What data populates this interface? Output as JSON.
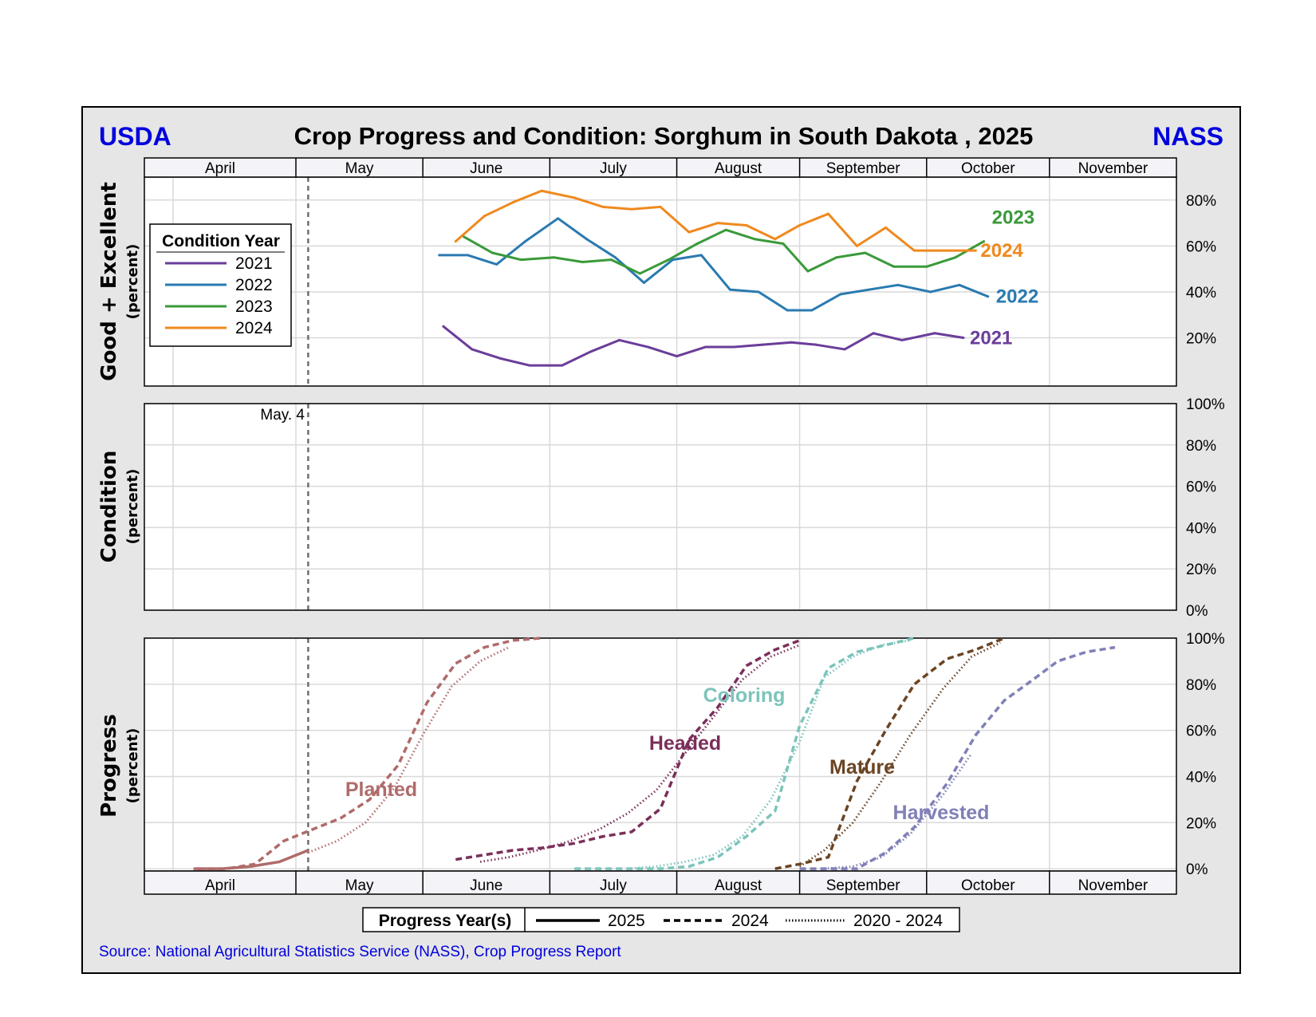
{
  "header": {
    "left_brand": "USDA",
    "right_brand": "NASS",
    "title": "Crop Progress and Condition: Sorghum in South Dakota , 2025"
  },
  "colors": {
    "brand": "#0000dd",
    "frame_bg": "#e6e6e6",
    "grid": "#d9d9d9",
    "reference_line": "#707070"
  },
  "months": [
    "April",
    "May",
    "June",
    "July",
    "August",
    "September",
    "October",
    "November"
  ],
  "reference": {
    "date": "05-04",
    "label": "May.  4"
  },
  "source": "Source: National Agricultural Statistics Service (NASS), Crop Progress Report",
  "chart_data": [
    {
      "type": "line",
      "id": "good_excellent",
      "ylabel": "Good + Excellent",
      "ylabel_sub": "(percent)",
      "x_range": [
        "03-25",
        "11-30"
      ],
      "ylim": [
        -1,
        90
      ],
      "yticks": [
        20,
        40,
        60,
        80
      ],
      "ytick_labels": [
        "20%",
        "40%",
        "60%",
        "80%"
      ],
      "grid": true,
      "legend": {
        "title": "Condition Year",
        "placement": "left"
      },
      "series": [
        {
          "name": "2021",
          "color": "#6a3d9a",
          "x": [
            "06-06",
            "06-13",
            "06-20",
            "06-27",
            "07-04",
            "07-11",
            "07-18",
            "07-25",
            "08-01",
            "08-08",
            "08-15",
            "08-22",
            "08-29",
            "09-05",
            "09-12",
            "09-19",
            "09-26",
            "10-03",
            "10-10"
          ],
          "y": [
            25,
            15,
            11,
            8,
            8,
            14,
            19,
            16,
            12,
            16,
            16,
            17,
            18,
            17,
            15,
            22,
            19,
            22,
            20
          ]
        },
        {
          "name": "2022",
          "color": "#2a7ab0",
          "x": [
            "06-05",
            "06-12",
            "06-19",
            "06-26",
            "07-03",
            "07-10",
            "07-17",
            "07-24",
            "07-31",
            "08-07",
            "08-14",
            "08-21",
            "08-28",
            "09-04",
            "09-11",
            "09-18",
            "09-25",
            "10-02",
            "10-09",
            "10-16"
          ],
          "y": [
            56,
            56,
            52,
            62,
            72,
            63,
            55,
            44,
            54,
            56,
            41,
            40,
            32,
            32,
            39,
            41,
            43,
            40,
            43,
            38
          ]
        },
        {
          "name": "2023",
          "color": "#3a9a3a",
          "x": [
            "06-11",
            "06-18",
            "06-25",
            "07-02",
            "07-09",
            "07-16",
            "07-23",
            "07-30",
            "08-06",
            "08-13",
            "08-20",
            "08-27",
            "09-03",
            "09-10",
            "09-17",
            "09-24",
            "10-01",
            "10-08",
            "10-15"
          ],
          "y": [
            64,
            57,
            54,
            55,
            53,
            54,
            48,
            54,
            61,
            67,
            63,
            61,
            49,
            55,
            57,
            51,
            51,
            55,
            62
          ]
        },
        {
          "name": "2024",
          "color": "#f0891e",
          "x": [
            "06-09",
            "06-16",
            "06-23",
            "06-30",
            "07-07",
            "07-14",
            "07-21",
            "07-28",
            "08-04",
            "08-11",
            "08-18",
            "08-25",
            "09-01",
            "09-08",
            "09-15",
            "09-22",
            "09-29",
            "10-06",
            "10-13"
          ],
          "y": [
            62,
            73,
            79,
            84,
            81,
            77,
            76,
            77,
            66,
            70,
            69,
            63,
            69,
            74,
            60,
            68,
            58,
            58,
            58
          ]
        }
      ]
    },
    {
      "type": "line",
      "id": "condition",
      "ylabel": "Condition",
      "ylabel_sub": "(percent)",
      "x_range": [
        "03-25",
        "11-30"
      ],
      "ylim": [
        0,
        100
      ],
      "yticks": [
        0,
        20,
        40,
        60,
        80,
        100
      ],
      "ytick_labels": [
        "0%",
        "20%",
        "40%",
        "60%",
        "80%",
        "100%"
      ],
      "grid": true,
      "series": []
    },
    {
      "type": "line",
      "id": "progress",
      "ylabel": "Progress",
      "ylabel_sub": "(percent)",
      "x_range": [
        "03-25",
        "11-30"
      ],
      "ylim": [
        -1,
        100
      ],
      "yticks": [
        0,
        20,
        40,
        60,
        80,
        100
      ],
      "ytick_labels": [
        "0%",
        "20%",
        "40%",
        "60%",
        "80%",
        "100%"
      ],
      "grid": true,
      "legend": {
        "title": "Progress Year(s)",
        "placement": "bottom",
        "entries": [
          {
            "label": "2025",
            "style": "solid"
          },
          {
            "label": "2024",
            "style": "dashed"
          },
          {
            "label": "2020 - 2024",
            "style": "dotted"
          }
        ]
      },
      "stages": [
        {
          "name": "Planted",
          "color": "#b06b6b",
          "series": [
            {
              "year": "2025",
              "style": "solid",
              "x": [
                "04-06",
                "04-13",
                "04-20",
                "04-27",
                "05-04"
              ],
              "y": [
                0,
                0,
                1,
                3,
                8
              ]
            },
            {
              "year": "2024",
              "style": "dashed",
              "x": [
                "04-07",
                "04-14",
                "04-21",
                "04-28",
                "05-05",
                "05-12",
                "05-19",
                "05-26",
                "06-02",
                "06-09",
                "06-16",
                "06-23",
                "06-30"
              ],
              "y": [
                0,
                0,
                2,
                12,
                17,
                22,
                30,
                45,
                72,
                89,
                96,
                99,
                100
              ]
            },
            {
              "year": "2020 - 2024",
              "style": "dotted",
              "x": [
                "05-04",
                "05-11",
                "05-18",
                "05-25",
                "06-01",
                "06-08",
                "06-15",
                "06-22"
              ],
              "y": [
                7,
                12,
                20,
                35,
                58,
                79,
                90,
                96
              ]
            }
          ]
        },
        {
          "name": "Headed",
          "color": "#7a2f5a",
          "series": [
            {
              "year": "2024",
              "style": "dashed",
              "x": [
                "06-09",
                "06-16",
                "06-23",
                "06-30",
                "07-07",
                "07-14",
                "07-21",
                "07-28",
                "08-04",
                "08-11",
                "08-18",
                "08-25",
                "09-01"
              ],
              "y": [
                4,
                6,
                8,
                9,
                11,
                14,
                16,
                26,
                56,
                70,
                88,
                95,
                99
              ]
            },
            {
              "year": "2020 - 2024",
              "style": "dotted",
              "x": [
                "06-15",
                "06-22",
                "06-29",
                "07-06",
                "07-13",
                "07-20",
                "07-27",
                "08-03",
                "08-10",
                "08-17",
                "08-24",
                "08-31"
              ],
              "y": [
                3,
                5,
                8,
                12,
                17,
                24,
                34,
                50,
                66,
                82,
                92,
                97
              ]
            }
          ]
        },
        {
          "name": "Coloring",
          "color": "#7cc4bb",
          "series": [
            {
              "year": "2024",
              "style": "dashed",
              "x": [
                "07-07",
                "07-14",
                "07-21",
                "07-28",
                "08-04",
                "08-11",
                "08-18",
                "08-25",
                "09-01",
                "09-08",
                "09-15",
                "09-22",
                "09-29"
              ],
              "y": [
                0,
                0,
                0,
                0,
                1,
                5,
                14,
                25,
                62,
                87,
                94,
                97,
                100
              ]
            },
            {
              "year": "2020 - 2024",
              "style": "dotted",
              "x": [
                "07-20",
                "07-27",
                "08-03",
                "08-10",
                "08-17",
                "08-24",
                "08-31",
                "09-07",
                "09-14",
                "09-21",
                "09-28"
              ],
              "y": [
                0,
                1,
                3,
                6,
                14,
                30,
                55,
                83,
                92,
                97,
                99
              ]
            }
          ]
        },
        {
          "name": "Mature",
          "color": "#6b4423",
          "series": [
            {
              "year": "2024",
              "style": "dashed",
              "x": [
                "08-25",
                "09-01",
                "09-08",
                "09-15",
                "09-22",
                "09-29",
                "10-06",
                "10-13",
                "10-20"
              ],
              "y": [
                0,
                2,
                5,
                38,
                60,
                80,
                91,
                95,
                100
              ]
            },
            {
              "year": "2020 - 2024",
              "style": "dotted",
              "x": [
                "08-31",
                "09-07",
                "09-14",
                "09-21",
                "09-28",
                "10-05",
                "10-12",
                "10-19"
              ],
              "y": [
                1,
                8,
                20,
                38,
                58,
                78,
                92,
                98
              ]
            }
          ]
        },
        {
          "name": "Harvested",
          "color": "#8080b8",
          "series": [
            {
              "year": "2024",
              "style": "dashed",
              "x": [
                "09-01",
                "09-08",
                "09-15",
                "09-22",
                "09-29",
                "10-06",
                "10-13",
                "10-20",
                "10-27",
                "11-03",
                "11-10",
                "11-17"
              ],
              "y": [
                0,
                0,
                0,
                7,
                18,
                37,
                58,
                73,
                82,
                90,
                94,
                96
              ]
            },
            {
              "year": "2020 - 2024",
              "style": "dotted",
              "x": [
                "09-07",
                "09-14",
                "09-21",
                "09-28",
                "10-05",
                "10-12"
              ],
              "y": [
                0,
                1,
                5,
                15,
                32,
                50
              ]
            }
          ]
        }
      ]
    }
  ]
}
